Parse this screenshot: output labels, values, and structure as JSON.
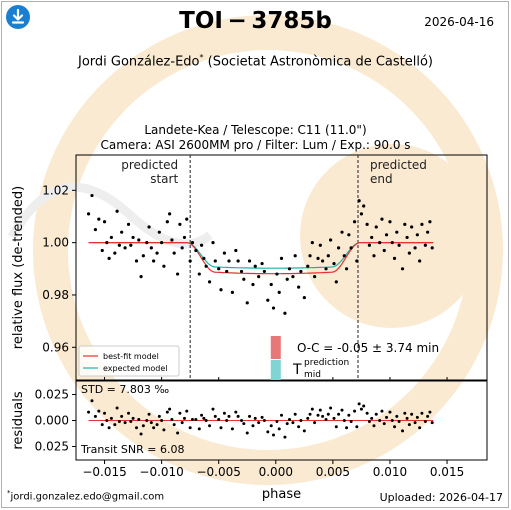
{
  "header": {
    "title": "TOI − 3785b",
    "date": "2026-04-16",
    "author": "Jordi González-Edo",
    "author_mark": "*",
    "affiliation": "(Societat Astronòmica de Castelló)",
    "observatory": "Landete-Kea / Telescope: C11 (11.0\")",
    "camera": "Camera: ASI 2600MM pro / Filter: Lum / Exp.: 90.0 s"
  },
  "footer": {
    "email_mark": "*",
    "email": "jordi.gonzalez.edo@gmail.com",
    "uploaded": "Uploaded: 2026-04-17"
  },
  "icons": {
    "download": "download-icon",
    "watermark": "exoclock-logo"
  },
  "colors": {
    "best_fit": "#e83030",
    "expected": "#20b2aa",
    "points": "#000000",
    "oc_bar": "#e87878",
    "tmid_bar": "#7fd4d4",
    "watermark_orange": "#fbead2"
  },
  "chart_data": {
    "type": "scatter",
    "x_range": [
      -0.0175,
      0.0185
    ],
    "xlabel": "phase",
    "x_ticks": [
      -0.015,
      -0.01,
      -0.005,
      0.0,
      0.005,
      0.01,
      0.015
    ],
    "x_tick_labels": [
      "−0.015",
      "−0.010",
      "−0.005",
      "0.000",
      "0.005",
      "0.010",
      "0.015"
    ],
    "main": {
      "ylabel": "relative flux (de-trended)",
      "y_range": [
        0.9475,
        1.0335
      ],
      "y_ticks": [
        0.96,
        0.98,
        1.0,
        1.02
      ],
      "y_tick_labels": [
        "0.96",
        "0.98",
        "1.00",
        "1.02"
      ],
      "vlines": [
        {
          "x": -0.0075,
          "label_lines": [
            "predicted",
            "start"
          ]
        },
        {
          "x": 0.0072,
          "label_lines": [
            "predicted",
            "end"
          ]
        }
      ],
      "legend_position": "lower-left",
      "legend": [
        {
          "name": "best-fit model",
          "color": "#e83030"
        },
        {
          "name": "expected model",
          "color": "#20b2aa"
        }
      ],
      "oc_text": "O-C = -0.05 ± 3.74 min",
      "tmid_label": "T",
      "tmid_sub": "mid",
      "tmid_sup": "prediction",
      "model_params": {
        "ingress_start": -0.0078,
        "ingress_end": -0.0053,
        "egress_start": 0.0049,
        "egress_end": 0.0074,
        "best_fit_depth": 0.0113,
        "expected_depth": 0.0093,
        "baseline": 1.0
      },
      "points": [
        [
          -0.0164,
          1.011
        ],
        [
          -0.0161,
          1.018
        ],
        [
          -0.0158,
          1.005
        ],
        [
          -0.0155,
          1.009
        ],
        [
          -0.0152,
          0.997
        ],
        [
          -0.015,
          1.008
        ],
        [
          -0.0148,
          1.0
        ],
        [
          -0.0146,
          0.994
        ],
        [
          -0.0144,
          1.002
        ],
        [
          -0.0141,
          0.996
        ],
        [
          -0.0139,
          1.012
        ],
        [
          -0.0137,
          0.999
        ],
        [
          -0.0135,
          1.004
        ],
        [
          -0.0132,
          0.998
        ],
        [
          -0.0129,
          1.007
        ],
        [
          -0.0127,
          0.999
        ],
        [
          -0.0125,
          1.002
        ],
        [
          -0.0122,
          0.993
        ],
        [
          -0.012,
          1.001
        ],
        [
          -0.0118,
          0.987
        ],
        [
          -0.0116,
          0.995
        ],
        [
          -0.0113,
          1.0
        ],
        [
          -0.0111,
          1.006
        ],
        [
          -0.0109,
          0.998
        ],
        [
          -0.0107,
          0.993
        ],
        [
          -0.0104,
          0.996
        ],
        [
          -0.0102,
          1.004
        ],
        [
          -0.01,
          1.0
        ],
        [
          -0.0098,
          0.991
        ],
        [
          -0.0095,
          1.008
        ],
        [
          -0.0093,
          1.011
        ],
        [
          -0.0091,
          1.001
        ],
        [
          -0.0089,
          0.996
        ],
        [
          -0.0086,
          0.988
        ],
        [
          -0.0084,
          1.007
        ],
        [
          -0.0082,
          0.998
        ],
        [
          -0.008,
          1.002
        ],
        [
          -0.0078,
          1.009
        ],
        [
          -0.0075,
          0.993
        ],
        [
          -0.0073,
          1.0
        ],
        [
          -0.007,
          0.997
        ],
        [
          -0.0067,
          0.988
        ],
        [
          -0.0065,
          0.999
        ],
        [
          -0.0063,
          0.994
        ],
        [
          -0.0061,
          0.991
        ],
        [
          -0.0058,
          0.985
        ],
        [
          -0.0055,
          1.0
        ],
        [
          -0.0053,
          0.993
        ],
        [
          -0.005,
          0.99
        ],
        [
          -0.0048,
          0.982
        ],
        [
          -0.0045,
          0.996
        ],
        [
          -0.0043,
          0.989
        ],
        [
          -0.0041,
          0.993
        ],
        [
          -0.0038,
          0.981
        ],
        [
          -0.0035,
          0.997
        ],
        [
          -0.0033,
          0.993
        ],
        [
          -0.003,
          0.989
        ],
        [
          -0.0028,
          0.986
        ],
        [
          -0.0025,
          0.977
        ],
        [
          -0.0023,
          0.993
        ],
        [
          -0.002,
          0.984
        ],
        [
          -0.0018,
          0.991
        ],
        [
          -0.0015,
          0.987
        ],
        [
          -0.0012,
          0.992
        ],
        [
          -0.001,
          0.989
        ],
        [
          -0.0007,
          0.978
        ],
        [
          -0.0004,
          0.984
        ],
        [
          -0.0002,
          0.975
        ],
        [
          0.0001,
          0.988
        ],
        [
          0.0003,
          0.981
        ],
        [
          0.0005,
          0.994
        ],
        [
          0.0008,
          0.973
        ],
        [
          0.001,
          0.986
        ],
        [
          0.0012,
          0.99
        ],
        [
          0.0015,
          0.987
        ],
        [
          0.0017,
          0.995
        ],
        [
          0.002,
          0.983
        ],
        [
          0.0022,
          0.989
        ],
        [
          0.0025,
          0.979
        ],
        [
          0.0028,
          0.991
        ],
        [
          0.003,
          0.995
        ],
        [
          0.0032,
          1.0
        ],
        [
          0.0034,
          0.987
        ],
        [
          0.0037,
          0.994
        ],
        [
          0.0039,
          0.999
        ],
        [
          0.0041,
          0.993
        ],
        [
          0.0044,
          0.99
        ],
        [
          0.0046,
          0.995
        ],
        [
          0.0048,
          1.001
        ],
        [
          0.0051,
          0.992
        ],
        [
          0.0053,
          0.985
        ],
        [
          0.0055,
          0.998
        ],
        [
          0.0058,
          1.004
        ],
        [
          0.006,
          0.995
        ],
        [
          0.0062,
          0.99
        ],
        [
          0.0064,
          1.003
        ],
        [
          0.0066,
          0.998
        ],
        [
          0.0069,
          1.008
        ],
        [
          0.0071,
          0.993
        ],
        [
          0.0073,
          1.016
        ],
        [
          0.0075,
          1.011
        ],
        [
          0.0077,
          1.014
        ],
        [
          0.008,
          1.007
        ],
        [
          0.0082,
          0.999
        ],
        [
          0.0084,
          1.002
        ],
        [
          0.0086,
          0.995
        ],
        [
          0.0088,
          1.006
        ],
        [
          0.0091,
          1.0
        ],
        [
          0.0093,
          1.009
        ],
        [
          0.0095,
          0.997
        ],
        [
          0.0097,
          1.003
        ],
        [
          0.01,
          1.008
        ],
        [
          0.0102,
          1.0
        ],
        [
          0.0104,
          0.994
        ],
        [
          0.0106,
          1.004
        ],
        [
          0.0108,
          0.999
        ],
        [
          0.0111,
          0.99
        ],
        [
          0.0113,
          1.007
        ],
        [
          0.0115,
          1.002
        ],
        [
          0.0117,
          0.996
        ],
        [
          0.0119,
          1.006
        ],
        [
          0.0122,
          0.998
        ],
        [
          0.0124,
          1.003
        ],
        [
          0.0126,
          0.993
        ],
        [
          0.0128,
          1.007
        ],
        [
          0.0131,
          0.999
        ],
        [
          0.0133,
          1.004
        ],
        [
          0.0135,
          1.008
        ],
        [
          0.0137,
          0.998
        ]
      ]
    },
    "residuals": {
      "ylabel": "residuals",
      "y_range": [
        -0.038,
        0.038
      ],
      "y_ticks": [
        -0.025,
        0.0,
        0.025
      ],
      "y_tick_labels": [
        "0.025",
        "0.000",
        "0.025"
      ],
      "std_text": "STD = 7.803 ‰",
      "snr_text": "Transit SNR = 6.08",
      "points": [
        [
          -0.0164,
          0.008
        ],
        [
          -0.0161,
          0.019
        ],
        [
          -0.0158,
          0.004
        ],
        [
          -0.0155,
          0.009
        ],
        [
          -0.0152,
          -0.004
        ],
        [
          -0.015,
          0.007
        ],
        [
          -0.0148,
          0.0
        ],
        [
          -0.0146,
          -0.007
        ],
        [
          -0.0144,
          0.002
        ],
        [
          -0.0141,
          -0.004
        ],
        [
          -0.0139,
          0.012
        ],
        [
          -0.0137,
          -0.001
        ],
        [
          -0.0135,
          0.004
        ],
        [
          -0.0132,
          -0.002
        ],
        [
          -0.0129,
          0.007
        ],
        [
          -0.0127,
          -0.001
        ],
        [
          -0.0125,
          0.002
        ],
        [
          -0.0122,
          -0.007
        ],
        [
          -0.012,
          0.001
        ],
        [
          -0.0118,
          -0.013
        ],
        [
          -0.0116,
          -0.005
        ],
        [
          -0.0113,
          0.0
        ],
        [
          -0.0111,
          0.006
        ],
        [
          -0.0109,
          -0.002
        ],
        [
          -0.0107,
          -0.007
        ],
        [
          -0.0104,
          -0.004
        ],
        [
          -0.0102,
          0.004
        ],
        [
          -0.01,
          0.0
        ],
        [
          -0.0098,
          -0.009
        ],
        [
          -0.0095,
          0.008
        ],
        [
          -0.0093,
          0.011
        ],
        [
          -0.0091,
          0.001
        ],
        [
          -0.0089,
          -0.004
        ],
        [
          -0.0086,
          -0.012
        ],
        [
          -0.0084,
          0.007
        ],
        [
          -0.0082,
          -0.002
        ],
        [
          -0.008,
          0.002
        ],
        [
          -0.0078,
          0.009
        ],
        [
          -0.0075,
          -0.007
        ],
        [
          -0.0073,
          0.001
        ],
        [
          -0.007,
          0.001
        ],
        [
          -0.0067,
          -0.008
        ],
        [
          -0.0065,
          0.005
        ],
        [
          -0.0063,
          0.002
        ],
        [
          -0.0061,
          0.0
        ],
        [
          -0.0058,
          -0.005
        ],
        [
          -0.0055,
          0.011
        ],
        [
          -0.0053,
          0.004
        ],
        [
          -0.005,
          0.001
        ],
        [
          -0.0048,
          -0.007
        ],
        [
          -0.0045,
          0.007
        ],
        [
          -0.0043,
          0.0
        ],
        [
          -0.0041,
          0.004
        ],
        [
          -0.0038,
          -0.008
        ],
        [
          -0.0035,
          0.008
        ],
        [
          -0.0033,
          0.004
        ],
        [
          -0.003,
          0.0
        ],
        [
          -0.0028,
          -0.003
        ],
        [
          -0.0025,
          -0.012
        ],
        [
          -0.0023,
          0.004
        ],
        [
          -0.002,
          -0.005
        ],
        [
          -0.0018,
          0.002
        ],
        [
          -0.0015,
          -0.002
        ],
        [
          -0.0012,
          0.003
        ],
        [
          -0.001,
          0.0
        ],
        [
          -0.0007,
          -0.011
        ],
        [
          -0.0004,
          -0.005
        ],
        [
          -0.0002,
          -0.014
        ],
        [
          0.0001,
          -0.001
        ],
        [
          0.0003,
          -0.008
        ],
        [
          0.0005,
          0.005
        ],
        [
          0.0008,
          -0.016
        ],
        [
          0.001,
          -0.003
        ],
        [
          0.0012,
          0.001
        ],
        [
          0.0015,
          -0.002
        ],
        [
          0.0017,
          0.006
        ],
        [
          0.002,
          -0.006
        ],
        [
          0.0022,
          0.0
        ],
        [
          0.0025,
          -0.01
        ],
        [
          0.0028,
          0.002
        ],
        [
          0.003,
          0.006
        ],
        [
          0.0032,
          0.011
        ],
        [
          0.0034,
          -0.002
        ],
        [
          0.0037,
          0.005
        ],
        [
          0.0039,
          0.01
        ],
        [
          0.0041,
          0.004
        ],
        [
          0.0044,
          0.001
        ],
        [
          0.0046,
          0.006
        ],
        [
          0.0048,
          0.012
        ],
        [
          0.0051,
          0.002
        ],
        [
          0.0053,
          -0.006
        ],
        [
          0.0055,
          0.006
        ],
        [
          0.0058,
          0.01
        ],
        [
          0.006,
          0.0
        ],
        [
          0.0062,
          -0.007
        ],
        [
          0.0064,
          0.005
        ],
        [
          0.0066,
          -0.001
        ],
        [
          0.0069,
          0.009
        ],
        [
          0.0071,
          -0.006
        ],
        [
          0.0073,
          0.016
        ],
        [
          0.0075,
          0.011
        ],
        [
          0.0077,
          0.014
        ],
        [
          0.008,
          0.007
        ],
        [
          0.0082,
          -0.001
        ],
        [
          0.0084,
          0.002
        ],
        [
          0.0086,
          -0.005
        ],
        [
          0.0088,
          0.006
        ],
        [
          0.0091,
          0.0
        ],
        [
          0.0093,
          0.009
        ],
        [
          0.0095,
          -0.003
        ],
        [
          0.0097,
          0.003
        ],
        [
          0.01,
          0.008
        ],
        [
          0.0102,
          0.0
        ],
        [
          0.0104,
          -0.006
        ],
        [
          0.0106,
          0.004
        ],
        [
          0.0108,
          -0.001
        ],
        [
          0.0111,
          -0.01
        ],
        [
          0.0113,
          0.007
        ],
        [
          0.0115,
          0.002
        ],
        [
          0.0117,
          -0.004
        ],
        [
          0.0119,
          0.006
        ],
        [
          0.0122,
          -0.002
        ],
        [
          0.0124,
          0.003
        ],
        [
          0.0126,
          -0.007
        ],
        [
          0.0128,
          0.007
        ],
        [
          0.0131,
          -0.001
        ],
        [
          0.0133,
          0.004
        ],
        [
          0.0135,
          0.008
        ],
        [
          0.0137,
          -0.002
        ]
      ]
    }
  }
}
